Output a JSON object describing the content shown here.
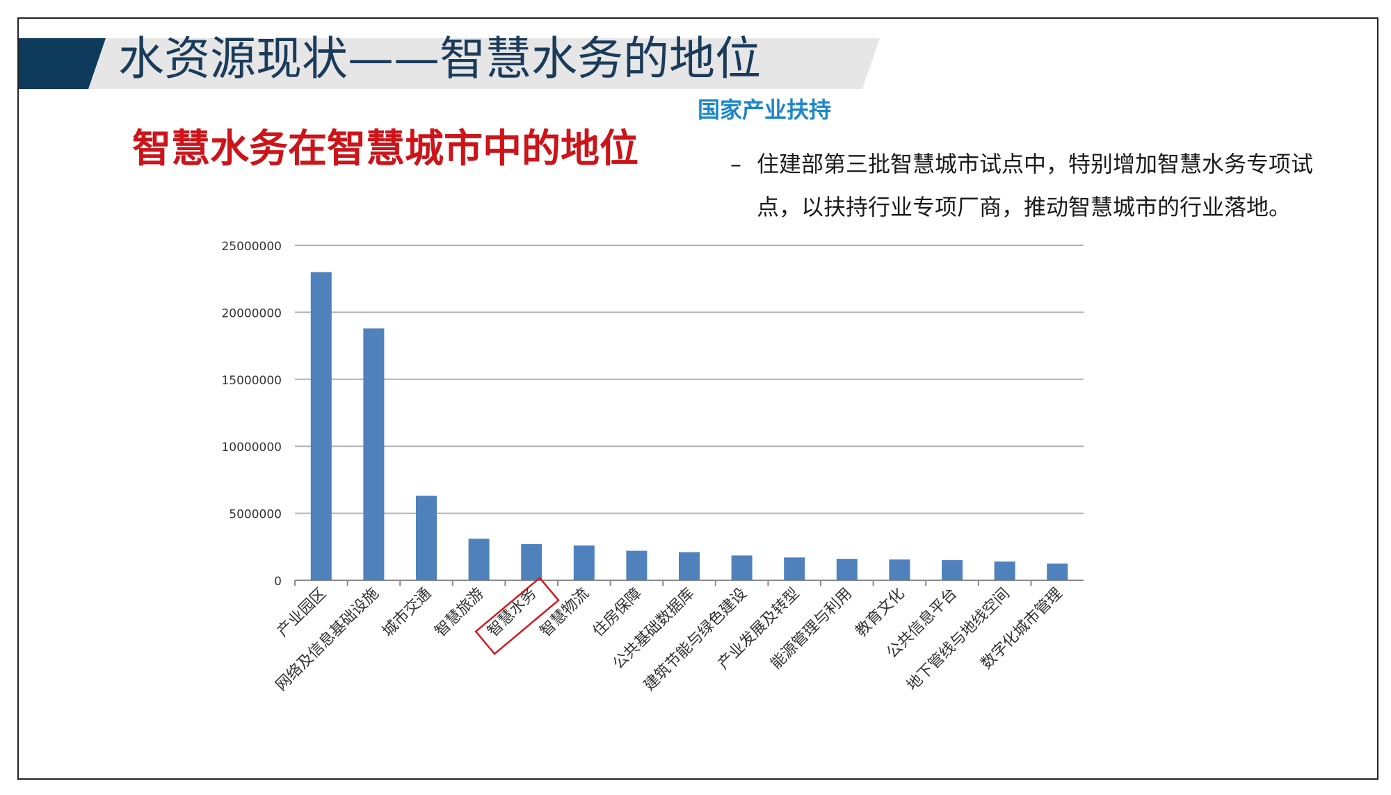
{
  "slide": {
    "title": "水资源现状——智慧水务的地位",
    "chart_heading": "智慧水务在智慧城市中的地位",
    "support_heading": "国家产业扶持",
    "support_dash": "–",
    "support_text": "住建部第三批智慧城市试点中，特别增加智慧水务专项试点，以扶持行业专项厂商，推动智慧城市的行业落地。",
    "accent_color": "#0e3a5c",
    "band_color": "#e6e6e6",
    "highlighted_category": "智慧水务",
    "highlight_color": "#d0191f"
  },
  "chart_data": {
    "type": "bar",
    "title": "",
    "xlabel": "",
    "ylabel": "",
    "ylim": [
      0,
      25000000
    ],
    "yticks": [
      "0",
      "5000000",
      "10000000",
      "15000000",
      "20000000",
      "25000000"
    ],
    "grid": true,
    "bar_color": "#4f81bd",
    "categories": [
      "产业园区",
      "网络及信息基础设施",
      "城市交通",
      "智慧旅游",
      "智慧水务",
      "智慧物流",
      "住房保障",
      "公共基础数据库",
      "建筑节能与绿色建设",
      "产业发展及转型",
      "能源管理与利用",
      "教育文化",
      "公共信息平台",
      "地下管线与地线空间",
      "数字化城市管理"
    ],
    "values": [
      23000000,
      18800000,
      6300000,
      3100000,
      2700000,
      2600000,
      2200000,
      2100000,
      1850000,
      1700000,
      1600000,
      1550000,
      1500000,
      1400000,
      1250000
    ]
  }
}
